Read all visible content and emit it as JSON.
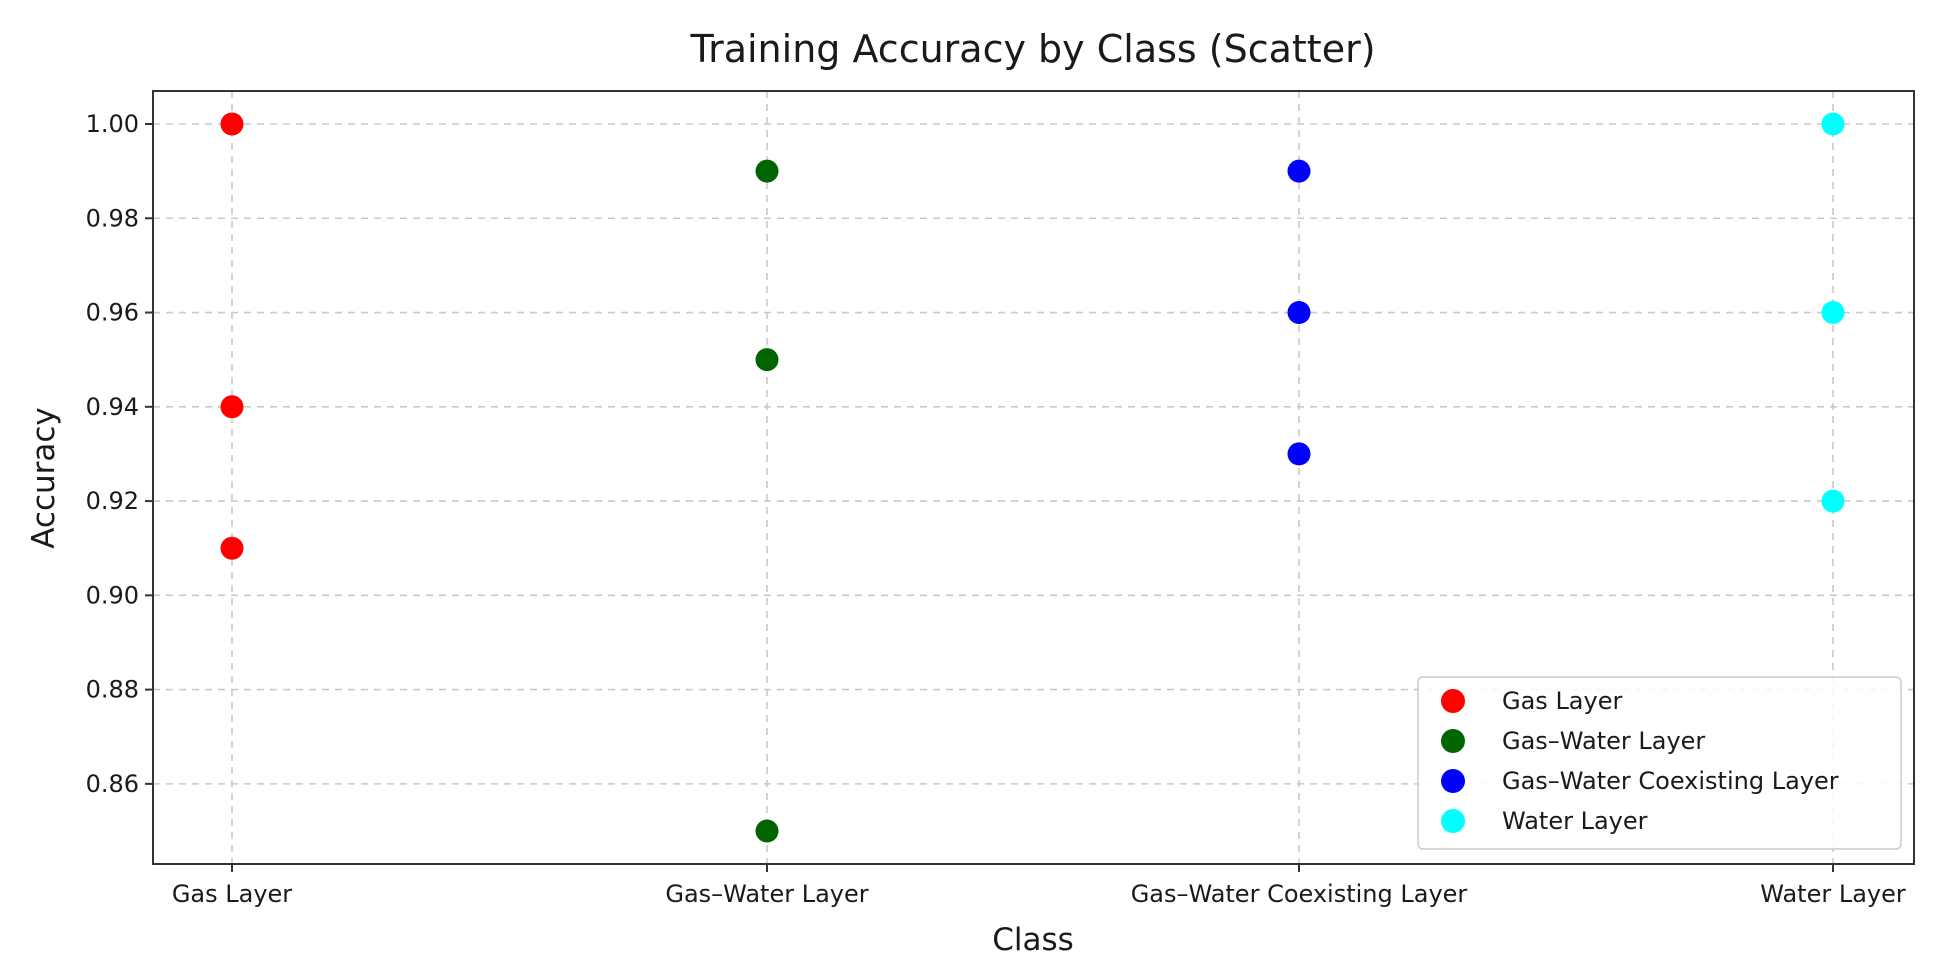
{
  "chart_data": {
    "type": "scatter",
    "title": "Training Accuracy by Class (Scatter)",
    "xlabel": "Class",
    "ylabel": "Accuracy",
    "categories": [
      "Gas Layer",
      "Gas–Water Layer",
      "Gas–Water Coexisting Layer",
      "Water Layer"
    ],
    "ylim": [
      0.843,
      1.007
    ],
    "yticks": [
      "0.86",
      "0.88",
      "0.90",
      "0.92",
      "0.94",
      "0.96",
      "0.98",
      "1.00"
    ],
    "grid": true,
    "legend_position": "bottom-right",
    "series": [
      {
        "name": "Gas Layer",
        "color": "#ff0000",
        "category_index": 0,
        "values": [
          1.0,
          0.94,
          0.91
        ]
      },
      {
        "name": "Gas–Water Layer",
        "color": "#006400",
        "category_index": 1,
        "values": [
          0.99,
          0.95,
          0.85
        ]
      },
      {
        "name": "Gas–Water Coexisting Layer",
        "color": "#0000ff",
        "category_index": 2,
        "values": [
          0.99,
          0.96,
          0.93
        ]
      },
      {
        "name": "Water Layer",
        "color": "#00ffff",
        "category_index": 3,
        "values": [
          1.0,
          0.96,
          0.92
        ]
      }
    ]
  }
}
